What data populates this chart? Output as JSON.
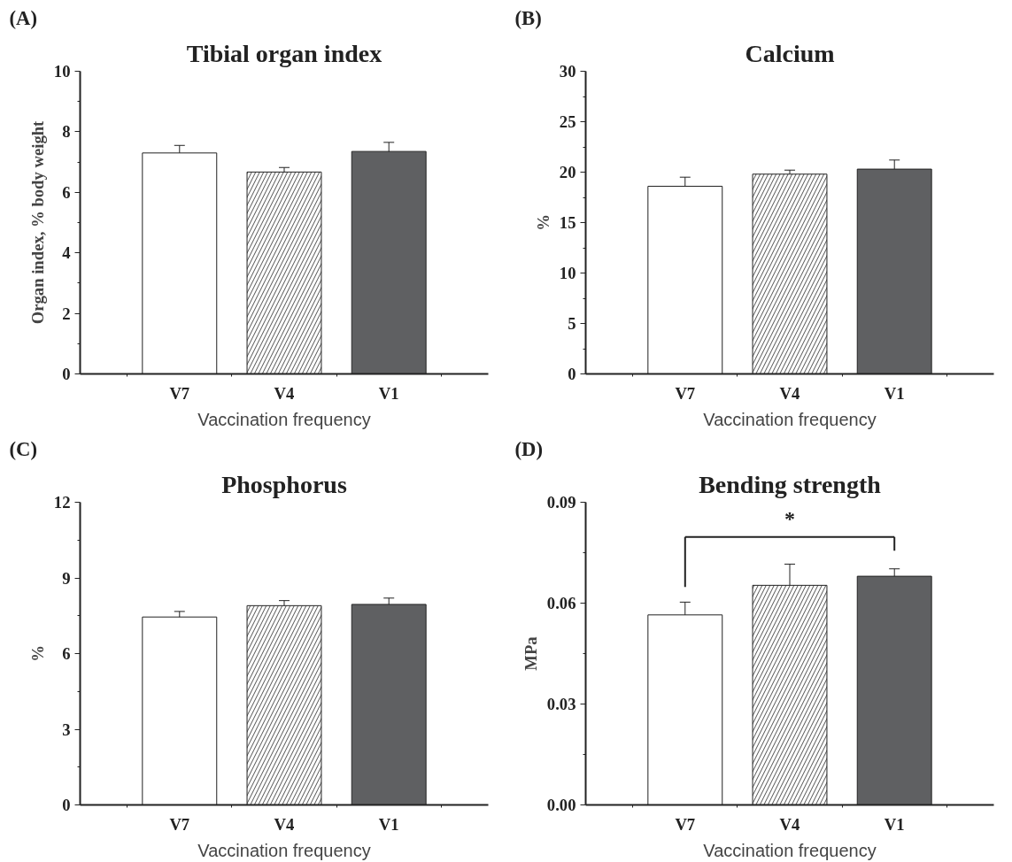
{
  "chart_data": [
    {
      "type": "bar",
      "title": "Tibial organ index",
      "annotations": [
        "(A)"
      ],
      "xlabel": "Vaccination frequency",
      "ylabel": "Organ index, % body weight",
      "categories": [
        "V7",
        "V4",
        "V1"
      ],
      "values": [
        7.3,
        6.67,
        7.35
      ],
      "errors": [
        0.25,
        0.15,
        0.3
      ],
      "colors": [
        "#ffffff",
        "#ffffff",
        "#5f6062"
      ],
      "ylim": [
        0,
        10
      ],
      "yticks": [
        0,
        2,
        4,
        6,
        8,
        10
      ]
    },
    {
      "type": "bar",
      "title": "Calcium",
      "annotations": [
        "(B)"
      ],
      "xlabel": "Vaccination frequency",
      "ylabel": "%",
      "categories": [
        "V7",
        "V4",
        "V1"
      ],
      "values": [
        18.6,
        19.8,
        20.3
      ],
      "errors": [
        0.9,
        0.4,
        0.9
      ],
      "colors": [
        "#ffffff",
        "#ffffff",
        "#5f6062"
      ],
      "ylim": [
        0,
        30
      ],
      "yticks": [
        0,
        5,
        10,
        15,
        20,
        25,
        30
      ]
    },
    {
      "type": "bar",
      "title": "Phosphorus",
      "annotations": [
        "(C)"
      ],
      "xlabel": "Vaccination frequency",
      "ylabel": "%",
      "categories": [
        "V7",
        "V4",
        "V1"
      ],
      "values": [
        7.45,
        7.9,
        7.95
      ],
      "errors": [
        0.22,
        0.2,
        0.25
      ],
      "colors": [
        "#ffffff",
        "#ffffff",
        "#5f6062"
      ],
      "ylim": [
        0,
        12
      ],
      "yticks": [
        0,
        3,
        6,
        9,
        12
      ]
    },
    {
      "type": "bar",
      "title": "Bending strength",
      "annotations": [
        "(D)",
        "*"
      ],
      "xlabel": "Vaccination frequency",
      "ylabel": "MPa",
      "categories": [
        "V7",
        "V4",
        "V1"
      ],
      "values": [
        0.0565,
        0.0653,
        0.068
      ],
      "errors": [
        0.0038,
        0.0063,
        0.0022
      ],
      "colors": [
        "#ffffff",
        "#ffffff",
        "#5f6062"
      ],
      "ylim": [
        0,
        0.09
      ],
      "yticks": [
        {
          "value": 0,
          "label": "0.00"
        },
        0.03,
        0.06,
        0.09
      ]
    }
  ]
}
